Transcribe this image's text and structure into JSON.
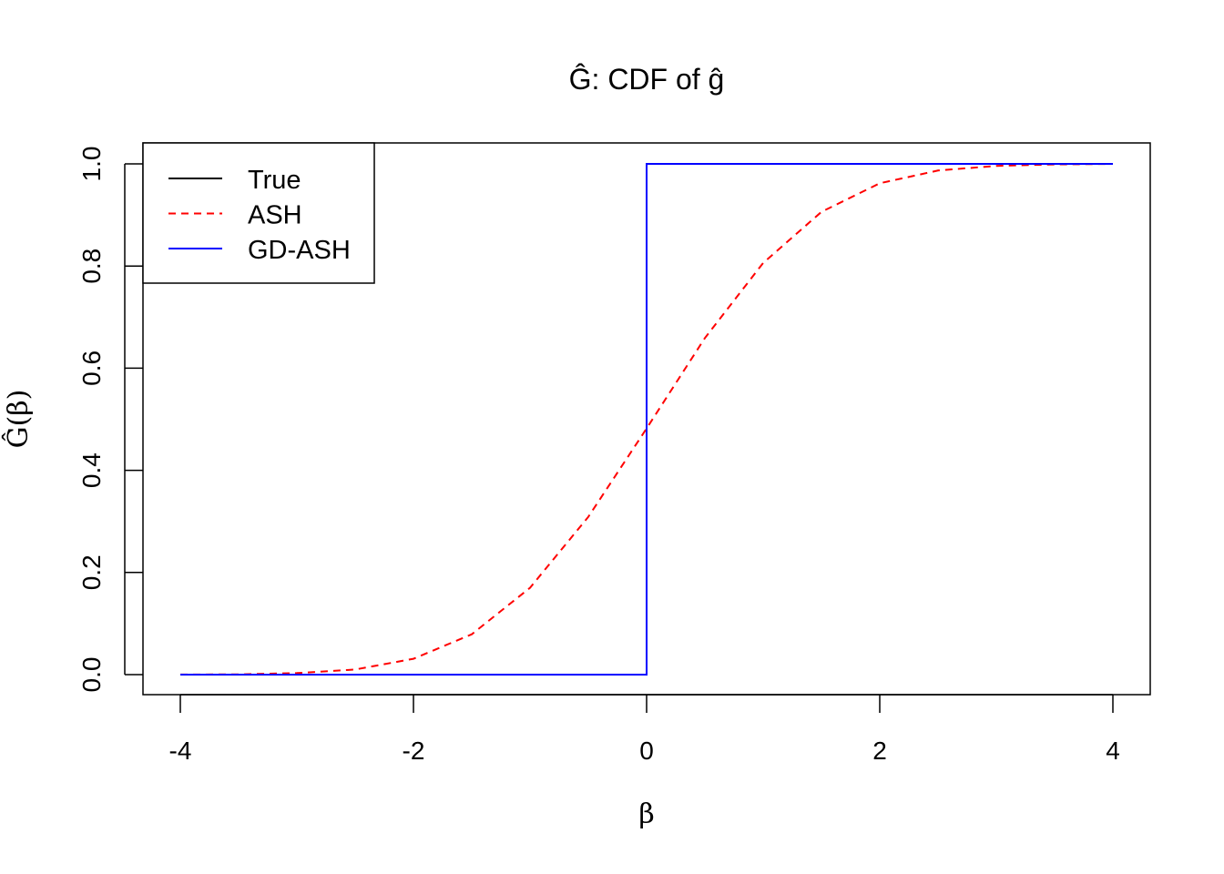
{
  "chart_data": {
    "type": "line",
    "title": "Ĝ: CDF of ĝ",
    "xlabel": "β",
    "ylabel": "Ĝ(β)",
    "xlim": [
      -4,
      4
    ],
    "ylim": [
      0,
      1
    ],
    "xticks": [
      "-4",
      "-2",
      "0",
      "2",
      "4"
    ],
    "yticks": [
      "0.0",
      "0.2",
      "0.4",
      "0.6",
      "0.8",
      "1.0"
    ],
    "grid": false,
    "legend_position": "top-left",
    "series": [
      {
        "name": "True",
        "color": "#000000",
        "dash": "solid",
        "x": [
          -4,
          0,
          0,
          4
        ],
        "y": [
          0,
          0,
          1,
          1
        ]
      },
      {
        "name": "ASH",
        "color": "#ff0000",
        "dash": "dashed",
        "x": [
          -4,
          -3.5,
          -3,
          -2.5,
          -2,
          -1.5,
          -1,
          -0.5,
          0,
          0.5,
          1,
          1.5,
          2,
          2.5,
          3,
          3.5,
          4
        ],
        "y": [
          0.0001,
          0.0006,
          0.003,
          0.01,
          0.031,
          0.079,
          0.17,
          0.309,
          0.482,
          0.659,
          0.806,
          0.906,
          0.962,
          0.987,
          0.996,
          0.999,
          1.0
        ]
      },
      {
        "name": "GD-ASH",
        "color": "#0000ff",
        "dash": "solid",
        "x": [
          -4,
          0,
          0,
          4
        ],
        "y": [
          0,
          0,
          1,
          1
        ]
      }
    ]
  }
}
